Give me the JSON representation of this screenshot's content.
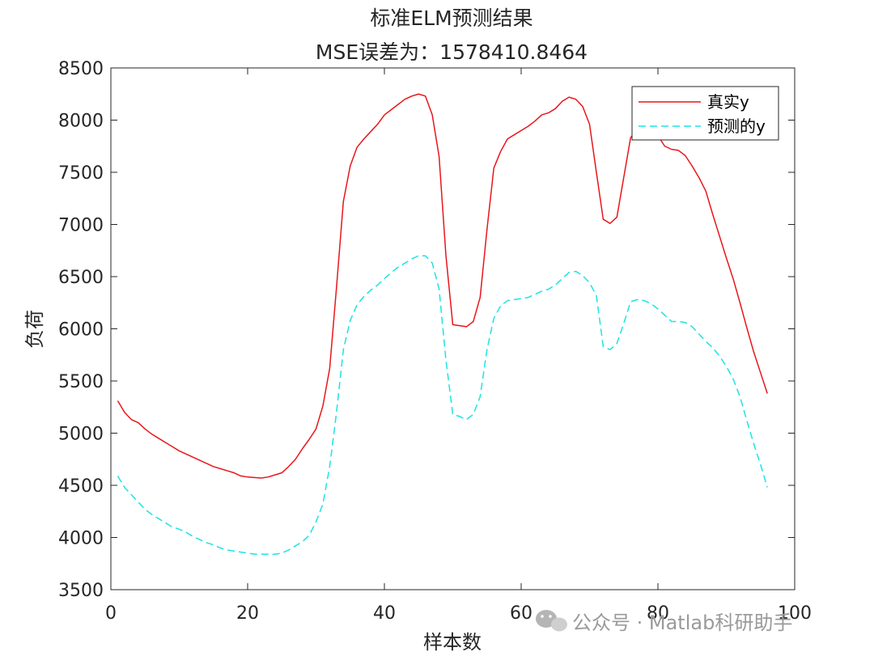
{
  "chart_data": {
    "type": "line",
    "title": "标准ELM预测结果",
    "subtitle": "MSE误差为：1578410.8464",
    "xlabel": "样本数",
    "ylabel": "负荷",
    "xlim": [
      0,
      100
    ],
    "ylim": [
      3500,
      8500
    ],
    "xticks": [
      0,
      20,
      40,
      60,
      80,
      100
    ],
    "yticks": [
      3500,
      4000,
      4500,
      5000,
      5500,
      6000,
      6500,
      7000,
      7500,
      8000,
      8500
    ],
    "grid": false,
    "legend_position": "top-right",
    "series": [
      {
        "name": "真实y",
        "color": "#e8161b",
        "style": "solid",
        "x": [
          1,
          2,
          3,
          4,
          5,
          6,
          7,
          8,
          9,
          10,
          11,
          12,
          13,
          14,
          15,
          16,
          17,
          18,
          19,
          20,
          21,
          22,
          23,
          24,
          25,
          26,
          27,
          28,
          29,
          30,
          31,
          32,
          33,
          34,
          35,
          36,
          37,
          38,
          39,
          40,
          41,
          42,
          43,
          44,
          45,
          46,
          47,
          48,
          49,
          50,
          51,
          52,
          53,
          54,
          55,
          56,
          57,
          58,
          59,
          60,
          61,
          62,
          63,
          64,
          65,
          66,
          67,
          68,
          69,
          70,
          71,
          72,
          73,
          74,
          75,
          76,
          77,
          78,
          79,
          80,
          81,
          82,
          83,
          84,
          85,
          86,
          87,
          88,
          89,
          90,
          91,
          92,
          93,
          94,
          95,
          96
        ],
        "values": [
          5310,
          5200,
          5130,
          5100,
          5040,
          4990,
          4950,
          4910,
          4870,
          4830,
          4800,
          4770,
          4740,
          4710,
          4680,
          4660,
          4640,
          4620,
          4590,
          4580,
          4575,
          4570,
          4580,
          4600,
          4620,
          4680,
          4750,
          4850,
          4940,
          5040,
          5260,
          5620,
          6400,
          7220,
          7560,
          7740,
          7820,
          7890,
          7960,
          8050,
          8100,
          8150,
          8200,
          8230,
          8250,
          8230,
          8050,
          7650,
          6700,
          6040,
          6030,
          6020,
          6070,
          6300,
          6950,
          7540,
          7700,
          7820,
          7860,
          7900,
          7940,
          7990,
          8050,
          8070,
          8110,
          8180,
          8220,
          8200,
          8130,
          7960,
          7500,
          7050,
          7010,
          7070,
          7450,
          7830,
          7920,
          7960,
          7920,
          7850,
          7750,
          7720,
          7710,
          7660,
          7560,
          7450,
          7320,
          7100,
          6890,
          6680,
          6480,
          6250,
          6010,
          5780,
          5580,
          5380
        ]
      },
      {
        "name": "预测的y",
        "color": "#1de3e3",
        "style": "dashed",
        "x": [
          1,
          2,
          3,
          4,
          5,
          6,
          7,
          8,
          9,
          10,
          11,
          12,
          13,
          14,
          15,
          16,
          17,
          18,
          19,
          20,
          21,
          22,
          23,
          24,
          25,
          26,
          27,
          28,
          29,
          30,
          31,
          32,
          33,
          34,
          35,
          36,
          37,
          38,
          39,
          40,
          41,
          42,
          43,
          44,
          45,
          46,
          47,
          48,
          49,
          50,
          51,
          52,
          53,
          54,
          55,
          56,
          57,
          58,
          59,
          60,
          61,
          62,
          63,
          64,
          65,
          66,
          67,
          68,
          69,
          70,
          71,
          72,
          73,
          74,
          75,
          76,
          77,
          78,
          79,
          80,
          81,
          82,
          83,
          84,
          85,
          86,
          87,
          88,
          89,
          90,
          91,
          92,
          93,
          94,
          95,
          96
        ],
        "values": [
          4590,
          4480,
          4410,
          4340,
          4270,
          4220,
          4180,
          4140,
          4100,
          4080,
          4050,
          4010,
          3980,
          3950,
          3930,
          3900,
          3880,
          3870,
          3860,
          3850,
          3840,
          3840,
          3840,
          3840,
          3850,
          3880,
          3920,
          3960,
          4020,
          4150,
          4320,
          4680,
          5200,
          5800,
          6080,
          6230,
          6310,
          6370,
          6420,
          6480,
          6540,
          6590,
          6630,
          6670,
          6700,
          6700,
          6630,
          6380,
          5700,
          5180,
          5160,
          5130,
          5180,
          5350,
          5800,
          6100,
          6220,
          6270,
          6280,
          6290,
          6300,
          6330,
          6360,
          6380,
          6420,
          6480,
          6540,
          6550,
          6510,
          6440,
          6320,
          5830,
          5800,
          5860,
          6050,
          6260,
          6280,
          6270,
          6240,
          6190,
          6130,
          6070,
          6070,
          6060,
          6020,
          5950,
          5880,
          5820,
          5740,
          5640,
          5520,
          5350,
          5120,
          4900,
          4700,
          4480
        ]
      }
    ]
  }
}
